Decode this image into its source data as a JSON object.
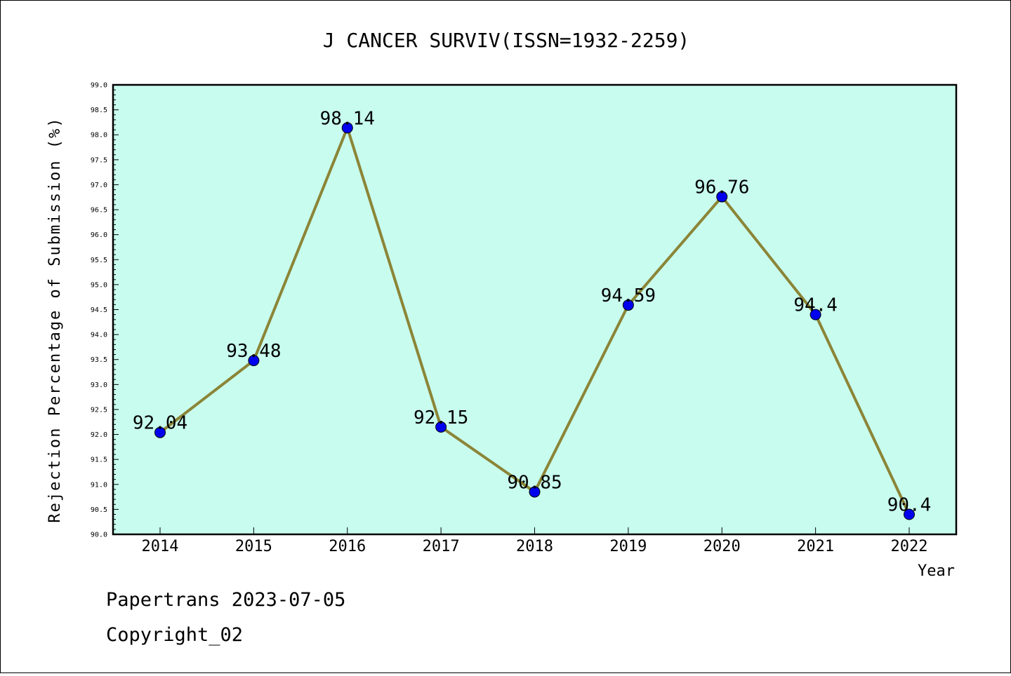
{
  "chart_data": {
    "type": "line",
    "title": "J CANCER SURVIV(ISSN=1932-2259)",
    "xlabel": "Year",
    "ylabel": "Rejection Percentage of Submission (%)",
    "categories": [
      "2014",
      "2015",
      "2016",
      "2017",
      "2018",
      "2019",
      "2020",
      "2021",
      "2022"
    ],
    "series": [
      {
        "values": [
          92.04,
          93.48,
          98.14,
          92.15,
          90.85,
          94.59,
          96.76,
          94.4,
          90.4
        ],
        "labels": [
          "92.04",
          "93.48",
          "98.14",
          "92.15",
          "90.85",
          "94.59",
          "96.76",
          "94.4",
          "90.4"
        ]
      }
    ],
    "ylim": [
      90.0,
      99.0
    ],
    "yticks": [
      "90.0",
      "90.5",
      "91.0",
      "91.5",
      "92.0",
      "92.5",
      "93.0",
      "93.5",
      "94.0",
      "94.5",
      "95.0",
      "95.5",
      "96.0",
      "96.5",
      "97.0",
      "97.5",
      "98.0",
      "98.5",
      "99.0"
    ],
    "grid": false,
    "colors": {
      "plot_background": "#c8fcee",
      "line": "#8b8537",
      "marker": "#0000ee"
    }
  },
  "footer": {
    "line1": "Papertrans 2023-07-05",
    "line2": "Copyright_02"
  }
}
